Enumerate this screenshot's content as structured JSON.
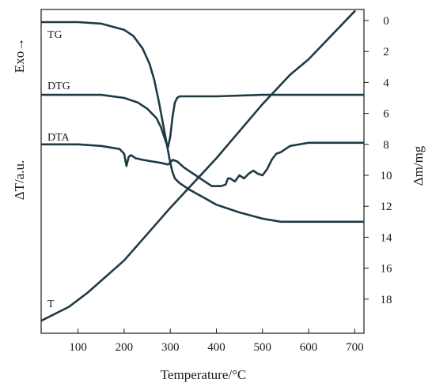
{
  "chart_data": {
    "type": "line",
    "xlabel": "Temperature/°C",
    "ylabel_left": "ΔT/a.u.",
    "ylabel_left_top": "Exo→",
    "ylabel_right": "Δm/mg",
    "xlim": [
      20,
      720
    ],
    "right_ylim": [
      0,
      20
    ],
    "right_y_inverted": true,
    "x_ticks": [
      100,
      200,
      300,
      400,
      500,
      600,
      700
    ],
    "right_y_ticks": [
      0,
      2,
      4,
      6,
      8,
      10,
      12,
      14,
      16,
      18
    ],
    "grid": false,
    "line_color": "#1e3a44",
    "series": [
      {
        "name": "TG",
        "axis": "right",
        "x": [
          20,
          100,
          150,
          200,
          220,
          240,
          255,
          265,
          275,
          285,
          295,
          300,
          305,
          310,
          320,
          340,
          370,
          400,
          450,
          500,
          540,
          600,
          650,
          720
        ],
        "y": [
          0.1,
          0.1,
          0.2,
          0.6,
          1.0,
          1.8,
          2.8,
          3.8,
          5.2,
          6.8,
          8.4,
          9.2,
          9.8,
          10.2,
          10.5,
          10.9,
          11.4,
          11.9,
          12.4,
          12.8,
          13.0,
          13.0,
          13.0,
          13.0
        ]
      },
      {
        "name": "DTG",
        "axis": "right",
        "x": [
          20,
          100,
          150,
          200,
          230,
          250,
          270,
          280,
          290,
          295,
          300,
          305,
          310,
          315,
          320,
          330,
          350,
          400,
          500,
          600,
          720
        ],
        "y": [
          4.8,
          4.8,
          4.8,
          5.0,
          5.3,
          5.7,
          6.3,
          6.9,
          7.8,
          8.2,
          7.5,
          6.2,
          5.3,
          5.0,
          4.9,
          4.9,
          4.9,
          4.9,
          4.8,
          4.8,
          4.8
        ]
      },
      {
        "name": "DTA",
        "axis": "right",
        "x": [
          20,
          100,
          150,
          190,
          200,
          205,
          210,
          215,
          225,
          240,
          260,
          280,
          295,
          300,
          305,
          315,
          330,
          345,
          360,
          375,
          390,
          400,
          410,
          420,
          425,
          430,
          440,
          450,
          460,
          470,
          480,
          490,
          500,
          510,
          520,
          530,
          540,
          560,
          600,
          650,
          720
        ],
        "y": [
          8.0,
          8.0,
          8.1,
          8.3,
          8.6,
          9.4,
          8.8,
          8.7,
          8.9,
          9.0,
          9.1,
          9.2,
          9.3,
          9.2,
          9.0,
          9.1,
          9.5,
          9.8,
          10.1,
          10.4,
          10.7,
          10.7,
          10.7,
          10.6,
          10.2,
          10.2,
          10.4,
          10.0,
          10.2,
          9.9,
          9.7,
          9.9,
          10.0,
          9.6,
          9.0,
          8.6,
          8.5,
          8.1,
          7.9,
          7.9,
          7.9
        ]
      },
      {
        "name": "T",
        "axis": "right",
        "x": [
          20,
          80,
          120,
          200,
          300,
          400,
          500,
          560,
          600,
          700
        ],
        "y": [
          19.4,
          18.5,
          17.6,
          15.5,
          12.1,
          8.9,
          5.4,
          3.5,
          2.5,
          -0.6
        ]
      }
    ]
  }
}
